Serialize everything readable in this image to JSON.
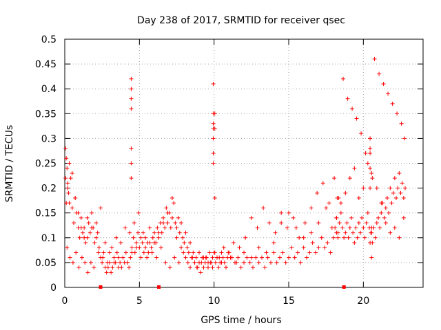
{
  "chart_data": {
    "type": "scatter",
    "title": "Day 238 of 2017, SRMTID for receiver qsec",
    "xlabel": "GPS time / hours",
    "ylabel": "SRMTID / TECUs",
    "xlim": [
      0,
      24
    ],
    "ylim": [
      0,
      0.5
    ],
    "xticks": [
      0,
      5,
      10,
      15,
      20
    ],
    "xtick_labels": [
      "0",
      "5",
      "10",
      "15",
      "20"
    ],
    "yticks": [
      0,
      0.05,
      0.1,
      0.15,
      0.2,
      0.25,
      0.3,
      0.35,
      0.4,
      0.45,
      0.5
    ],
    "ytick_labels": [
      "0",
      "0.05",
      "0.1",
      "0.15",
      "0.2",
      "0.25",
      "0.3",
      "0.35",
      "0.4",
      "0.45",
      "0.5"
    ],
    "grid": true,
    "marker": "+",
    "series_color": "#ff0000",
    "points_x": [
      0.05,
      0.1,
      0.15,
      0.2,
      0.25,
      0.3,
      0.4,
      0.5,
      0.6,
      0.7,
      0.8,
      0.9,
      1.0,
      1.1,
      1.2,
      1.3,
      1.4,
      1.5,
      1.6,
      1.7,
      1.8,
      1.9,
      2.0,
      2.1,
      2.2,
      2.3,
      2.4,
      2.5,
      2.6,
      2.7,
      2.8,
      2.9,
      3.0,
      3.1,
      3.2,
      3.3,
      3.4,
      3.5,
      3.6,
      3.7,
      3.8,
      3.9,
      4.0,
      4.1,
      4.2,
      4.3,
      4.4,
      4.5,
      4.6,
      4.7,
      4.8,
      4.9,
      5.0,
      5.1,
      5.2,
      5.3,
      5.4,
      5.5,
      5.6,
      5.7,
      5.8,
      5.9,
      6.0,
      6.1,
      6.2,
      6.3,
      6.4,
      6.5,
      6.6,
      6.7,
      6.8,
      6.9,
      7.0,
      7.1,
      7.2,
      7.3,
      7.4,
      7.5,
      7.6,
      7.7,
      7.8,
      7.9,
      8.0,
      8.1,
      8.2,
      8.3,
      8.4,
      8.5,
      8.6,
      8.7,
      8.8,
      8.9,
      9.0,
      9.1,
      9.2,
      9.3,
      9.4,
      9.5,
      9.6,
      9.7,
      9.8,
      9.9,
      10.0,
      10.1,
      10.2,
      10.3,
      10.4,
      10.5,
      10.6,
      10.7,
      10.8,
      10.9,
      11.0,
      11.2,
      11.4,
      11.6,
      11.8,
      12.0,
      12.2,
      12.4,
      12.6,
      12.8,
      13.0,
      13.2,
      13.4,
      13.6,
      13.8,
      14.0,
      14.2,
      14.4,
      14.6,
      14.8,
      15.0,
      15.2,
      15.4,
      15.6,
      15.8,
      16.0,
      16.2,
      16.4,
      16.6,
      16.8,
      17.0,
      17.2,
      17.4,
      17.6,
      17.8,
      18.0,
      18.1,
      18.2,
      18.3,
      18.4,
      18.5,
      18.6,
      18.7,
      18.8,
      18.9,
      19.0,
      19.1,
      19.2,
      19.3,
      19.4,
      19.5,
      19.6,
      19.7,
      19.8,
      19.9,
      20.0,
      20.1,
      20.2,
      20.3,
      20.4,
      20.5,
      20.6,
      20.7,
      20.8,
      20.9,
      21.0,
      21.1,
      21.2,
      21.3,
      21.4,
      21.5,
      21.6,
      21.7,
      21.8,
      21.9,
      22.0,
      22.1,
      22.2,
      22.3,
      22.4,
      22.5,
      22.6,
      22.7,
      22.8,
      0.05,
      0.1,
      0.2,
      0.3,
      0.5,
      0.7,
      0.9,
      1.1,
      1.3,
      1.5,
      1.8,
      2.1,
      2.4,
      2.7,
      3.0,
      3.3,
      3.6,
      3.9,
      4.2,
      4.5,
      4.8,
      5.1,
      5.4,
      5.7,
      6.0,
      6.3,
      6.6,
      6.9,
      7.2,
      7.5,
      7.8,
      8.1,
      8.4,
      8.7,
      9.0,
      9.3,
      9.6,
      9.9,
      10.2,
      10.5,
      10.8,
      11.1,
      11.5,
      12.0,
      12.5,
      13.0,
      13.5,
      14.0,
      14.5,
      15.0,
      15.5,
      16.0,
      16.5,
      17.0,
      17.5,
      17.9,
      18.2,
      18.5,
      18.8,
      19.1,
      19.4,
      19.7,
      20.0,
      20.3,
      20.6,
      20.9,
      21.2,
      21.5,
      21.8,
      22.1,
      22.4,
      22.7,
      0.15,
      0.35,
      0.55,
      0.75,
      0.95,
      1.15,
      1.35,
      1.55,
      1.75,
      1.95,
      2.25,
      2.55,
      2.85,
      3.15,
      3.45,
      3.75,
      4.05,
      4.35,
      4.65,
      4.95,
      5.25,
      5.55,
      5.85,
      6.15,
      6.45,
      6.75,
      7.05,
      7.35,
      7.65,
      7.95,
      8.25,
      8.55,
      8.85,
      9.15,
      9.45,
      9.75,
      10.05,
      10.35,
      10.65,
      10.95,
      11.3,
      11.7,
      12.1,
      12.5,
      12.9,
      13.3,
      13.7,
      14.1,
      14.5,
      14.9,
      15.3,
      15.7,
      16.1,
      16.5,
      16.9,
      17.3,
      17.7,
      18.05,
      18.35,
      18.65,
      18.95,
      19.25,
      19.55,
      19.85,
      20.15,
      20.45,
      20.75,
      21.05,
      21.35,
      21.65,
      21.95,
      22.25,
      22.55,
      22.75,
      4.45,
      4.45,
      4.45,
      4.45,
      4.45,
      4.45,
      4.45,
      9.95,
      9.95,
      9.95,
      9.95,
      9.95,
      9.95,
      9.95,
      9.95,
      10.05,
      10.05,
      10.05,
      20.45,
      20.45,
      20.45,
      20.45,
      20.45,
      20.55,
      20.55,
      20.55,
      20.55,
      18.2,
      18.25,
      18.3,
      18.35,
      22.5,
      22.5,
      22.6,
      22.6,
      22.4,
      0.08,
      0.12,
      0.05,
      0.15,
      0.25,
      2.3,
      6.3,
      18.7
    ],
    "points_y": [
      0.28,
      0.26,
      0.24,
      0.21,
      0.19,
      0.17,
      0.22,
      0.16,
      0.13,
      0.18,
      0.15,
      0.12,
      0.1,
      0.14,
      0.11,
      0.12,
      0.09,
      0.1,
      0.13,
      0.11,
      0.15,
      0.12,
      0.09,
      0.13,
      0.11,
      0.08,
      0.06,
      0.05,
      0.07,
      0.04,
      0.03,
      0.04,
      0.05,
      0.03,
      0.04,
      0.06,
      0.05,
      0.07,
      0.06,
      0.05,
      0.04,
      0.06,
      0.05,
      0.07,
      0.05,
      0.04,
      0.06,
      0.08,
      0.1,
      0.07,
      0.09,
      0.11,
      0.08,
      0.1,
      0.09,
      0.07,
      0.08,
      0.06,
      0.07,
      0.09,
      0.08,
      0.1,
      0.11,
      0.09,
      0.12,
      0.1,
      0.13,
      0.11,
      0.14,
      0.12,
      0.16,
      0.13,
      0.15,
      0.12,
      0.14,
      0.17,
      0.13,
      0.12,
      0.14,
      0.11,
      0.13,
      0.1,
      0.09,
      0.11,
      0.08,
      0.07,
      0.09,
      0.06,
      0.07,
      0.05,
      0.06,
      0.04,
      0.05,
      0.03,
      0.06,
      0.04,
      0.05,
      0.06,
      0.04,
      0.07,
      0.05,
      0.06,
      0.07,
      0.05,
      0.06,
      0.04,
      0.05,
      0.07,
      0.06,
      0.05,
      0.04,
      0.06,
      0.07,
      0.06,
      0.05,
      0.06,
      0.04,
      0.05,
      0.06,
      0.05,
      0.04,
      0.06,
      0.05,
      0.06,
      0.04,
      0.06,
      0.05,
      0.07,
      0.05,
      0.06,
      0.07,
      0.05,
      0.06,
      0.08,
      0.06,
      0.07,
      0.05,
      0.08,
      0.06,
      0.07,
      0.09,
      0.07,
      0.08,
      0.1,
      0.08,
      0.09,
      0.07,
      0.1,
      0.12,
      0.14,
      0.11,
      0.13,
      0.15,
      0.12,
      0.1,
      0.11,
      0.13,
      0.1,
      0.12,
      0.14,
      0.11,
      0.09,
      0.12,
      0.1,
      0.13,
      0.11,
      0.14,
      0.12,
      0.1,
      0.13,
      0.15,
      0.12,
      0.11,
      0.09,
      0.12,
      0.1,
      0.13,
      0.14,
      0.12,
      0.15,
      0.17,
      0.14,
      0.16,
      0.18,
      0.15,
      0.2,
      0.17,
      0.19,
      0.22,
      0.18,
      0.2,
      0.23,
      0.19,
      0.21,
      0.18,
      0.2,
      0.22,
      0.17,
      0.2,
      0.25,
      0.23,
      0.18,
      0.15,
      0.12,
      0.1,
      0.14,
      0.12,
      0.1,
      0.16,
      0.09,
      0.07,
      0.05,
      0.04,
      0.06,
      0.05,
      0.07,
      0.08,
      0.06,
      0.1,
      0.12,
      0.09,
      0.11,
      0.13,
      0.15,
      0.18,
      0.1,
      0.08,
      0.06,
      0.04,
      0.05,
      0.07,
      0.06,
      0.05,
      0.04,
      0.06,
      0.05,
      0.04,
      0.06,
      0.05,
      0.07,
      0.06,
      0.08,
      0.07,
      0.09,
      0.13,
      0.15,
      0.12,
      0.1,
      0.11,
      0.13,
      0.16,
      0.12,
      0.14,
      0.17,
      0.19,
      0.22,
      0.24,
      0.18,
      0.2,
      0.25,
      0.22,
      0.2,
      0.17,
      0.13,
      0.11,
      0.12,
      0.1,
      0.14,
      0.08,
      0.06,
      0.05,
      0.07,
      0.04,
      0.06,
      0.05,
      0.03,
      0.05,
      0.04,
      0.07,
      0.06,
      0.05,
      0.08,
      0.1,
      0.09,
      0.12,
      0.11,
      0.13,
      0.15,
      0.11,
      0.09,
      0.07,
      0.06,
      0.08,
      0.05,
      0.04,
      0.06,
      0.05,
      0.07,
      0.05,
      0.06,
      0.04,
      0.05,
      0.06,
      0.05,
      0.07,
      0.06,
      0.08,
      0.07,
      0.09,
      0.08,
      0.1,
      0.14,
      0.12,
      0.16,
      0.13,
      0.11,
      0.15,
      0.12,
      0.14,
      0.1,
      0.13,
      0.16,
      0.19,
      0.21,
      0.17,
      0.22,
      0.18,
      0.42,
      0.38,
      0.36,
      0.34,
      0.31,
      0.27,
      0.24,
      0.46,
      0.43,
      0.41,
      0.39,
      0.37,
      0.35,
      0.33,
      0.3,
      0.28,
      0.25,
      0.22,
      0.42,
      0.4,
      0.38,
      0.36,
      0.33,
      0.41,
      0.35,
      0.3,
      0.27,
      0.32,
      0.27,
      0.25,
      0.18,
      0.35,
      0.32,
      0.3,
      0.27,
      0.28,
      0.2,
      0.09,
      0.06,
      0.23,
      0.12,
      0.11,
      0.11,
      0.18,
      0.1
    ],
    "axis_markers_x": [
      2.4,
      6.3,
      18.7
    ]
  }
}
